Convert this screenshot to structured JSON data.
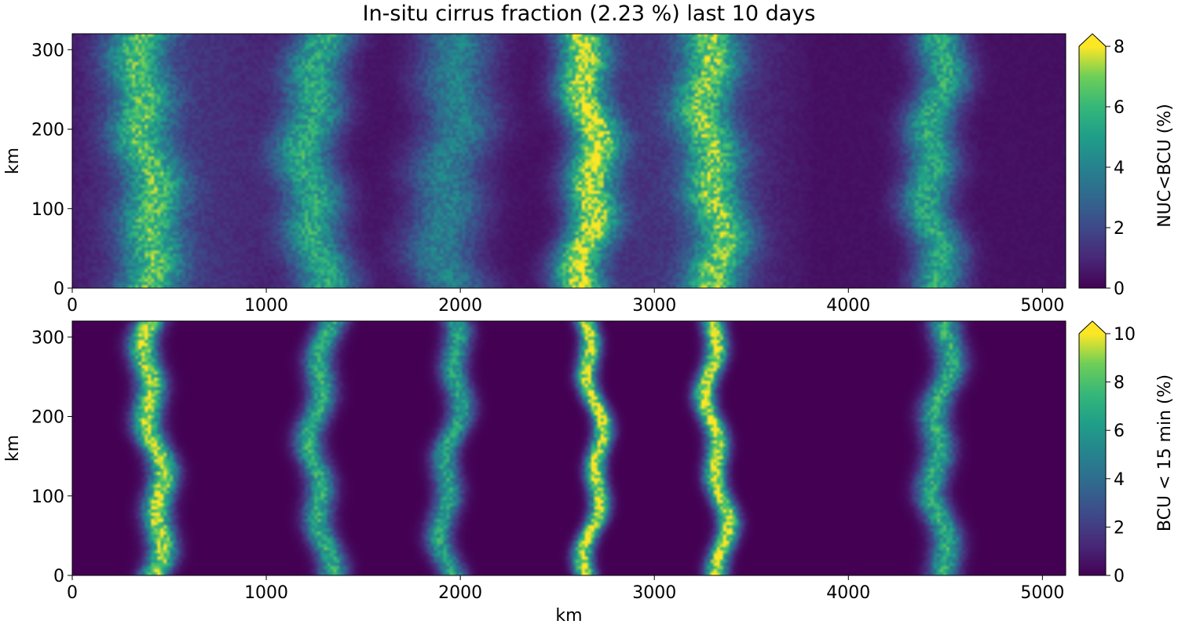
{
  "title": "In-situ cirrus fraction (2.23 %) last 10 days",
  "chart_data": [
    {
      "type": "heatmap",
      "xlabel": "",
      "ylabel": "km",
      "xlim": [
        0,
        5120
      ],
      "ylim": [
        0,
        320
      ],
      "xticks": [
        "0",
        "1000",
        "2000",
        "3000",
        "4000",
        "5000"
      ],
      "yticks": [
        "0",
        "100",
        "200",
        "300"
      ],
      "colormap": "viridis",
      "colorbar": {
        "label": "NUC<BCU (%)",
        "range": [
          0,
          8
        ],
        "ticks": [
          "0",
          "2",
          "4",
          "6",
          "8"
        ],
        "extend": "max"
      },
      "bands": [
        {
          "x_center": 380,
          "width": 180,
          "peak": 5.0
        },
        {
          "x_center": 1250,
          "width": 180,
          "peak": 5.0
        },
        {
          "x_center": 1950,
          "width": 220,
          "peak": 3.5
        },
        {
          "x_center": 2650,
          "width": 150,
          "peak": 7.0
        },
        {
          "x_center": 3300,
          "width": 170,
          "peak": 5.5
        },
        {
          "x_center": 4450,
          "width": 150,
          "peak": 5.0
        }
      ]
    },
    {
      "type": "heatmap",
      "xlabel": "km",
      "ylabel": "km",
      "xlim": [
        0,
        5120
      ],
      "ylim": [
        0,
        320
      ],
      "xticks": [
        "0",
        "1000",
        "2000",
        "3000",
        "4000",
        "5000"
      ],
      "yticks": [
        "0",
        "100",
        "200",
        "300"
      ],
      "colormap": "viridis",
      "colorbar": {
        "label": "BCU < 15 min (%)",
        "range": [
          0,
          10
        ],
        "ticks": [
          "0",
          "2",
          "4",
          "6",
          "8",
          "10"
        ],
        "extend": "max"
      },
      "bands": [
        {
          "x_center": 420,
          "width": 85,
          "peak": 9.5
        },
        {
          "x_center": 1280,
          "width": 85,
          "peak": 7.0
        },
        {
          "x_center": 1950,
          "width": 80,
          "peak": 6.5
        },
        {
          "x_center": 2680,
          "width": 60,
          "peak": 10.0
        },
        {
          "x_center": 3320,
          "width": 65,
          "peak": 10.0
        },
        {
          "x_center": 4480,
          "width": 90,
          "peak": 7.0
        }
      ]
    }
  ]
}
